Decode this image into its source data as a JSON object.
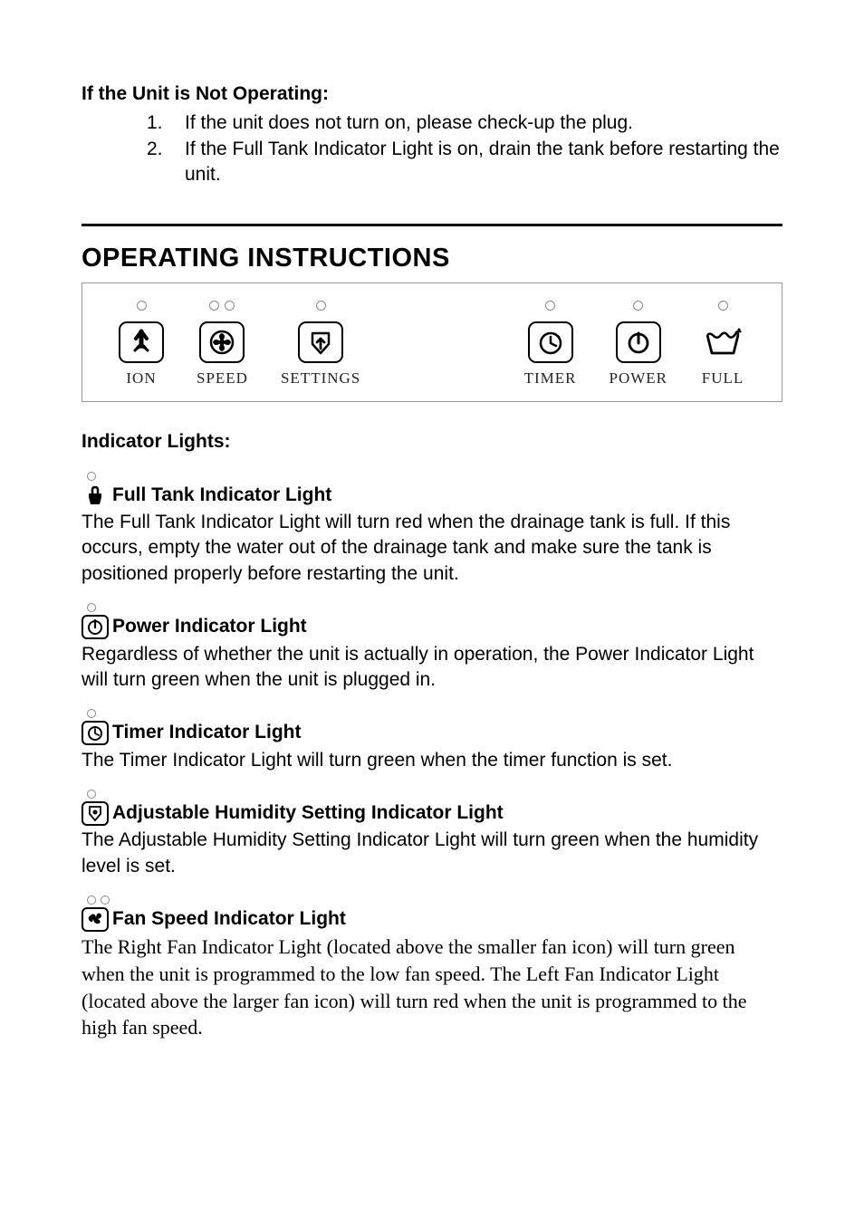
{
  "troubleshooting": {
    "title": "If the Unit is Not Operating:",
    "items": [
      {
        "num": "1.",
        "text": "If the unit does not turn on, please check-up the plug."
      },
      {
        "num": "2.",
        "text": "If the Full Tank Indicator Light is on, drain the tank before restarting the unit."
      }
    ]
  },
  "heading": "OPERATING INSTRUCTIONS",
  "panel": {
    "groups": [
      {
        "items": [
          {
            "leds": 1,
            "icon": "ion",
            "label": "ION"
          },
          {
            "leds": 2,
            "icon": "speed",
            "label": "SPEED"
          },
          {
            "leds": 1,
            "icon": "settings",
            "label": "SETTINGS"
          }
        ]
      },
      {
        "items": [
          {
            "leds": 1,
            "icon": "timer",
            "label": "TIMER"
          },
          {
            "leds": 1,
            "icon": "power",
            "label": "POWER"
          },
          {
            "leds": 1,
            "icon": "full",
            "label": "FULL",
            "noBorder": true
          }
        ]
      }
    ]
  },
  "indicatorsTitle": "Indicator Lights:",
  "indicators": [
    {
      "leds": 1,
      "icon": "full-small",
      "boxed": false,
      "title": "Full Tank Indicator Light",
      "body": "The Full Tank Indicator Light will turn red when the drainage tank is full.  If this occurs, empty the water out of the drainage tank and make sure the tank is positioned properly before restarting the unit.",
      "serif": false
    },
    {
      "leds": 1,
      "icon": "power-small",
      "boxed": true,
      "title": "Power Indicator Light",
      "body": "Regardless of whether the unit is actually in operation, the Power Indicator Light will turn green when the unit is plugged in.",
      "serif": false
    },
    {
      "leds": 1,
      "icon": "timer-small",
      "boxed": true,
      "title": "Timer Indicator Light",
      "body": "The Timer Indicator Light will turn green when the timer function is set.",
      "serif": false
    },
    {
      "leds": 1,
      "icon": "settings-small",
      "boxed": true,
      "title": "Adjustable Humidity Setting Indicator Light",
      "body": "The Adjustable Humidity Setting Indicator Light will turn green when the humidity level is set.",
      "serif": false
    },
    {
      "leds": 2,
      "icon": "speed-small",
      "boxed": true,
      "title": "Fan Speed Indicator Light",
      "body": "The Right Fan Indicator Light (located above the smaller fan icon) will turn green when the unit is programmed to the low fan speed.  The Left Fan Indicator Light (located above the larger fan icon) will turn red when the unit is programmed to the high fan speed.",
      "serif": true
    }
  ],
  "svg": {
    "ion": "<svg width='30' height='30' viewBox='0 0 30 30'><path d='M15 4 L15 18 M15 4 L10 10 M15 4 L20 10 M10 22 Q15 14 20 22' fill='none' stroke='#000' stroke-width='3' stroke-linecap='round'/><circle cx='15' cy='13' r='11' fill='none' stroke='none'/><path d='M15 3 L15 17' stroke='#000' stroke-width='5' stroke-linecap='round'/><path d='M15 3 L9 11 M15 3 L21 11' stroke='#000' stroke-width='4' stroke-linecap='round'/><path d='M8 24 Q15 16 22 24' stroke='#000' stroke-width='3' fill='none' stroke-linecap='round'/></svg>",
    "speed": "<svg width='32' height='32' viewBox='0 0 32 32'><circle cx='16' cy='16' r='12' fill='none' stroke='#000' stroke-width='2.5'/><circle cx='16' cy='16' r='3' fill='#000'/><path d='M16 16 Q10 8 16 6 Q22 8 16 16 Q24 10 26 16 Q24 22 16 16 Q22 24 16 26 Q10 24 16 16 Q8 22 6 16 Q8 10 16 16' fill='#000'/></svg>",
    "settings": "<svg width='30' height='30' viewBox='0 0 30 30'><path d='M15 27 L6 17 L6 5 L24 5 L24 17 Z' fill='none' stroke='#000' stroke-width='2.5' stroke-linejoin='round'/><path d='M15 22 L15 11 M15 11 L11 15 M15 11 L19 15' fill='none' stroke='#000' stroke-width='2.8' stroke-linecap='round'/></svg>",
    "timer": "<svg width='30' height='30' viewBox='0 0 30 30'><circle cx='15' cy='16' r='11' fill='none' stroke='#000' stroke-width='2.5'/><path d='M15 16 L15 9 M15 16 L21 19' stroke='#000' stroke-width='2.5' stroke-linecap='round'/><path d='M20 6 L24 9' stroke='#000' stroke-width='2.5' stroke-linecap='round'/></svg>",
    "power": "<svg width='30' height='30' viewBox='0 0 30 30'><circle cx='15' cy='16' r='10' fill='none' stroke='#000' stroke-width='2.8'/><path d='M15 5 L15 16' stroke='#000' stroke-width='3' stroke-linecap='round'/></svg>",
    "full": "<svg width='44' height='36' viewBox='0 0 44 36'><path d='M5 10 L10 30 L34 30 L39 10' fill='none' stroke='#000' stroke-width='2.8' stroke-linejoin='round'/><path d='M5 10 Q8 7 12 11 Q16 15 20 10 Q24 5 28 11 Q32 15 36 9 Q39 6 39 10' fill='none' stroke='#000' stroke-width='2.5'/><path d='M36 8 Q40 4 42 7' fill='none' stroke='#000' stroke-width='2.5'/><circle cx='40' cy='4' r='1.5' fill='#000'/></svg>",
    "full-small": "<svg width='22' height='24' viewBox='0 0 22 24'><path d='M4 14 L6 22 L16 22 L18 14 L18 10 L4 10 Z' fill='#000'/><path d='M8 10 L8 6 Q8 3 11 3 Q14 3 14 6 L14 10' fill='none' stroke='#000' stroke-width='2.5'/></svg>",
    "power-small": "<svg width='20' height='20' viewBox='0 0 20 20'><circle cx='10' cy='11' r='7' fill='none' stroke='#000' stroke-width='2'/><path d='M10 3 L10 11' stroke='#000' stroke-width='2.2' stroke-linecap='round'/></svg>",
    "timer-small": "<svg width='20' height='20' viewBox='0 0 20 20'><circle cx='10' cy='11' r='7' fill='none' stroke='#000' stroke-width='2'/><path d='M10 11 L10 6 M10 11 L14 13' stroke='#000' stroke-width='1.8' stroke-linecap='round'/></svg>",
    "settings-small": "<svg width='20' height='20' viewBox='0 0 20 20'><path d='M10 18 L4 11 L4 3 L16 3 L16 11 Z' fill='none' stroke='#000' stroke-width='1.8'/><circle cx='10' cy='9' r='2.5' fill='#000'/></svg>",
    "speed-small": "<svg width='22' height='20' viewBox='0 0 22 20'><path d='M6 6 Q2 8 5 12 Q8 15 9 10 Q10 16 15 15 Q19 13 14 10 Q20 8 17 4 Q13 2 12 8 Q10 2 6 6' fill='#000'/></svg>"
  }
}
